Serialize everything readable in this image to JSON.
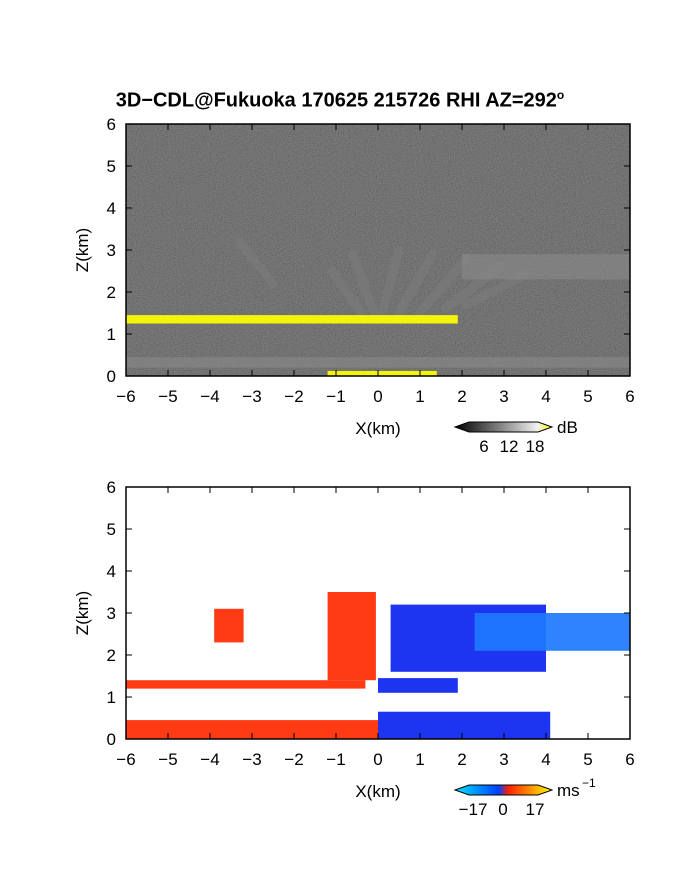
{
  "title_main": "3D−CDL@Fukuoka 170625 215726 RHI AZ=292",
  "title_deg": "o",
  "chart_data": [
    {
      "type": "heatmap",
      "panel": "top",
      "variable": "backscatter intensity",
      "xlabel": "X(km)",
      "ylabel": "Z(km)",
      "xlim": [
        -6,
        6
      ],
      "ylim": [
        0,
        6
      ],
      "xticks": [
        "−6",
        "−5",
        "−4",
        "−3",
        "−2",
        "−1",
        "0",
        "1",
        "2",
        "3",
        "4",
        "5",
        "6"
      ],
      "yticks": [
        "0",
        "1",
        "2",
        "3",
        "4",
        "5",
        "6"
      ],
      "colorbar": {
        "unit": "dB",
        "ticks": [
          "6",
          "12",
          "18"
        ],
        "colors": [
          "#000000",
          "#ffffff",
          "#ffff00"
        ]
      },
      "features": [
        {
          "kind": "layer",
          "x": [
            -6.0,
            1.9
          ],
          "z": [
            1.25,
            1.45
          ],
          "level": "high"
        },
        {
          "kind": "layer",
          "x": [
            -1.2,
            1.4
          ],
          "z": [
            0.0,
            0.12
          ],
          "level": "high"
        },
        {
          "kind": "layer",
          "x": [
            -6.0,
            6.0
          ],
          "z": [
            0.2,
            0.45
          ],
          "level": "medium"
        },
        {
          "kind": "layer",
          "x": [
            2.0,
            6.0
          ],
          "z": [
            2.3,
            2.9
          ],
          "level": "medium"
        }
      ]
    },
    {
      "type": "heatmap",
      "panel": "bottom",
      "variable": "radial velocity",
      "xlabel": "X(km)",
      "ylabel": "Z(km)",
      "xlim": [
        -6,
        6
      ],
      "ylim": [
        0,
        6
      ],
      "xticks": [
        "−6",
        "−5",
        "−4",
        "−3",
        "−2",
        "−1",
        "0",
        "1",
        "2",
        "3",
        "4",
        "5",
        "6"
      ],
      "yticks": [
        "0",
        "1",
        "2",
        "3",
        "4",
        "5",
        "6"
      ],
      "colorbar": {
        "unit": "ms",
        "unit_exp": "−1",
        "ticks": [
          "−17",
          "0",
          "17"
        ],
        "colors": [
          "#00e5ff",
          "#0040ff",
          "#ff2000",
          "#ffff00"
        ]
      },
      "features": [
        {
          "kind": "region",
          "x": [
            -6.0,
            -0.3
          ],
          "z": [
            1.2,
            1.4
          ],
          "velocity": "positive"
        },
        {
          "kind": "region",
          "x": [
            -6.0,
            0.0
          ],
          "z": [
            0.0,
            0.45
          ],
          "velocity": "positive"
        },
        {
          "kind": "region",
          "x": [
            -1.2,
            -0.05
          ],
          "z": [
            1.4,
            3.5
          ],
          "velocity": "positive"
        },
        {
          "kind": "region",
          "x": [
            0.0,
            4.1
          ],
          "z": [
            0.0,
            0.65
          ],
          "velocity": "negative"
        },
        {
          "kind": "region",
          "x": [
            0.0,
            1.9
          ],
          "z": [
            1.1,
            1.45
          ],
          "velocity": "negative"
        },
        {
          "kind": "region",
          "x": [
            0.3,
            4.0
          ],
          "z": [
            1.6,
            3.2
          ],
          "velocity": "negative"
        },
        {
          "kind": "region",
          "x": [
            2.3,
            6.0
          ],
          "z": [
            2.1,
            3.0
          ],
          "velocity": "negative"
        },
        {
          "kind": "region",
          "x": [
            -3.9,
            -3.2
          ],
          "z": [
            2.3,
            3.1
          ],
          "velocity": "positive"
        }
      ]
    }
  ]
}
